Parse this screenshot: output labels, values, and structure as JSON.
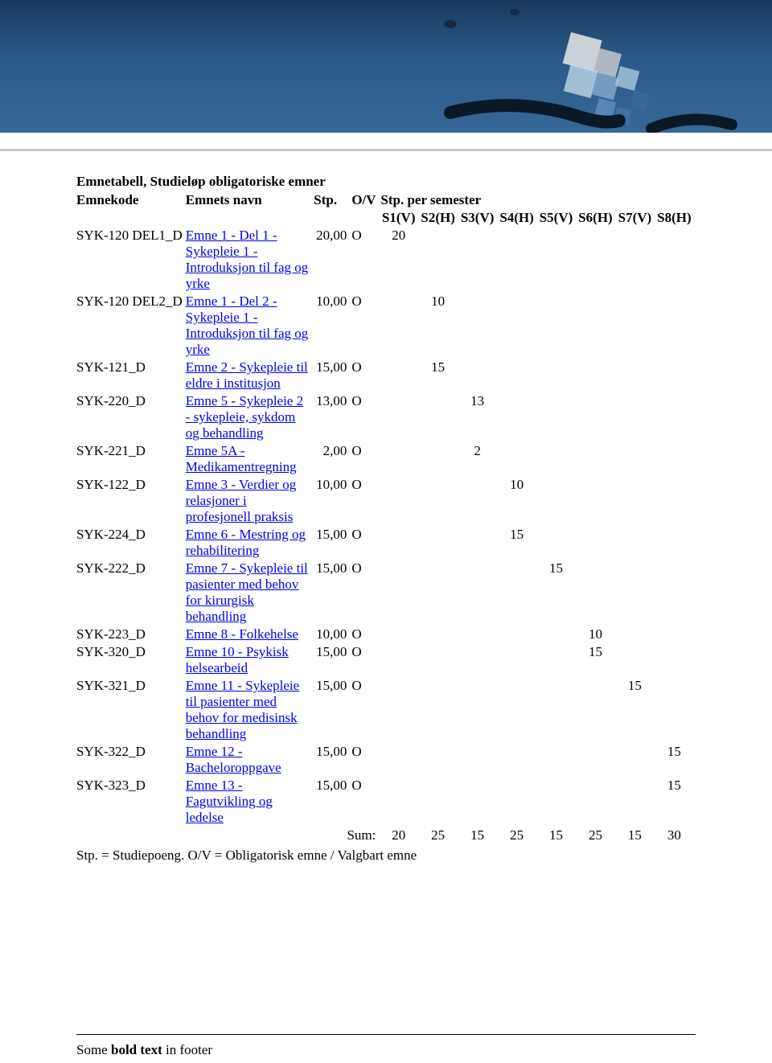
{
  "banner": {
    "bg_top": "#1a3a5c",
    "bg_bottom": "#3a6a9a"
  },
  "title": "Emnetabell, Studieløp obligatoriske emner",
  "headers": {
    "code": "Emnekode",
    "name": "Emnets navn",
    "stp": "Stp.",
    "ov": "O/V",
    "per_sem": "Stp. per semester",
    "sems": [
      "S1(V)",
      "S2(H)",
      "S3(V)",
      "S4(H)",
      "S5(V)",
      "S6(H)",
      "S7(V)",
      "S8(H)"
    ]
  },
  "rows": [
    {
      "code": "SYK-120 DEL1_D",
      "name": "Emne 1 - Del 1 - Sykepleie 1 - Introduksjon til fag og yrke",
      "stp": "20,00",
      "ov": "O",
      "sem": [
        "20",
        "",
        "",
        "",
        "",
        "",
        "",
        ""
      ]
    },
    {
      "code": "SYK-120 DEL2_D",
      "name": "Emne 1 - Del 2 - Sykepleie 1 - Introduksjon til fag og yrke",
      "stp": "10,00",
      "ov": "O",
      "sem": [
        "",
        "10",
        "",
        "",
        "",
        "",
        "",
        ""
      ]
    },
    {
      "code": "SYK-121_D",
      "name": "Emne 2 - Sykepleie til eldre i institusjon",
      "stp": "15,00",
      "ov": "O",
      "sem": [
        "",
        "15",
        "",
        "",
        "",
        "",
        "",
        ""
      ]
    },
    {
      "code": "SYK-220_D",
      "name": "Emne 5 - Sykepleie 2 - sykepleie, sykdom og behandling",
      "stp": "13,00",
      "ov": "O",
      "sem": [
        "",
        "",
        "13",
        "",
        "",
        "",
        "",
        ""
      ]
    },
    {
      "code": "SYK-221_D",
      "name": "Emne 5A - Medikamentregning",
      "stp": "2,00",
      "ov": "O",
      "sem": [
        "",
        "",
        "2",
        "",
        "",
        "",
        "",
        ""
      ]
    },
    {
      "code": "SYK-122_D",
      "name": "Emne 3 - Verdier og relasjoner i profesjonell praksis",
      "stp": "10,00",
      "ov": "O",
      "sem": [
        "",
        "",
        "",
        "10",
        "",
        "",
        "",
        ""
      ]
    },
    {
      "code": "SYK-224_D",
      "name": "Emne 6 - Mestring og rehabilitering",
      "stp": "15,00",
      "ov": "O",
      "sem": [
        "",
        "",
        "",
        "15",
        "",
        "",
        "",
        ""
      ]
    },
    {
      "code": "SYK-222_D",
      "name": "Emne 7 - Sykepleie til pasienter med behov for kirurgisk behandling",
      "stp": "15,00",
      "ov": "O",
      "sem": [
        "",
        "",
        "",
        "",
        "15",
        "",
        "",
        ""
      ]
    },
    {
      "code": "SYK-223_D",
      "name": "Emne 8 - Folkehelse",
      "stp": "10,00",
      "ov": "O",
      "sem": [
        "",
        "",
        "",
        "",
        "",
        "10",
        "",
        ""
      ]
    },
    {
      "code": "SYK-320_D",
      "name": "Emne 10 - Psykisk helsearbeid",
      "stp": "15,00",
      "ov": "O",
      "sem": [
        "",
        "",
        "",
        "",
        "",
        "15",
        "",
        ""
      ]
    },
    {
      "code": "SYK-321_D",
      "name": "Emne 11 - Sykepleie til pasienter med behov for medisinsk behandling",
      "stp": "15,00",
      "ov": "O",
      "sem": [
        "",
        "",
        "",
        "",
        "",
        "",
        "15",
        ""
      ]
    },
    {
      "code": "SYK-322_D",
      "name": "Emne 12 - Bacheloroppgave",
      "stp": "15,00",
      "ov": "O",
      "sem": [
        "",
        "",
        "",
        "",
        "",
        "",
        "",
        "15"
      ]
    },
    {
      "code": "SYK-323_D",
      "name": "Emne 13 - Fagutvikling og ledelse",
      "stp": "15,00",
      "ov": "O",
      "sem": [
        "",
        "",
        "",
        "",
        "",
        "",
        "",
        "15"
      ]
    }
  ],
  "sum": {
    "label": "Sum:",
    "values": [
      "20",
      "25",
      "15",
      "25",
      "15",
      "25",
      "15",
      "30"
    ]
  },
  "legend": "Stp. = Studiepoeng. O/V = Obligatorisk emne / Valgbart emne",
  "footer": {
    "prefix": "Some ",
    "bold": "bold text",
    "suffix": " in footer"
  }
}
